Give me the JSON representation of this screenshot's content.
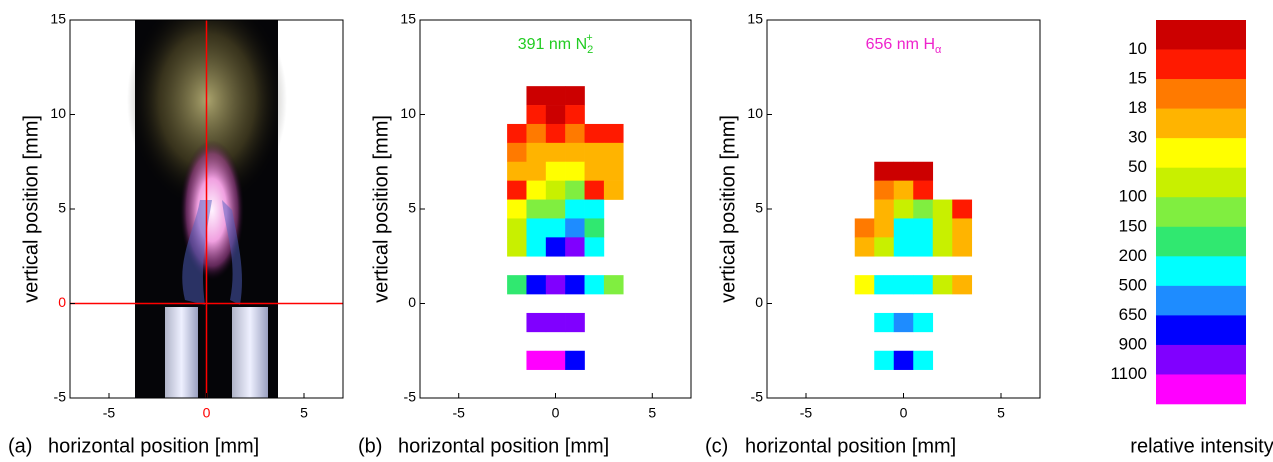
{
  "chart_data": [
    {
      "type": "image",
      "panel": "(a)",
      "xlabel": "horizontal position [mm]",
      "ylabel": "vertical position [mm]",
      "xlim": [
        -7,
        7
      ],
      "ylim": [
        -5,
        15
      ],
      "xticks": [
        -5,
        0,
        5
      ],
      "yticks": [
        -5,
        0,
        5,
        10,
        15
      ],
      "crosshair": {
        "x": 0,
        "y": 0,
        "color": "#ff0000"
      }
    },
    {
      "type": "heatmap",
      "panel": "(b)",
      "xlabel": "horizontal position [mm]",
      "ylabel": "vertical position [mm]",
      "title": {
        "text": "391 nm N",
        "sub": "2",
        "sup": "+",
        "color": "#22cc22"
      },
      "xlim": [
        -7,
        7
      ],
      "ylim": [
        -5,
        15
      ],
      "xticks": [
        -5,
        0,
        5
      ],
      "yticks": [
        -5,
        0,
        5,
        10,
        15
      ],
      "rows": [
        {
          "y": 11,
          "x": [
            -1,
            0,
            1
          ],
          "colors": [
            "#cc0000",
            "#cc0000",
            "#cc0000"
          ]
        },
        {
          "y": 10,
          "x": [
            -1,
            0,
            1
          ],
          "colors": [
            "#ff1a00",
            "#cc0000",
            "#ff1a00"
          ]
        },
        {
          "y": 9,
          "x": [
            -2,
            -1,
            0,
            1,
            2,
            3
          ],
          "colors": [
            "#ff1a00",
            "#ff7a00",
            "#ff1a00",
            "#ff7a00",
            "#ff1a00",
            "#ff1a00"
          ]
        },
        {
          "y": 8,
          "x": [
            -2,
            -1,
            0,
            1,
            2,
            3
          ],
          "colors": [
            "#ff7a00",
            "#ffb400",
            "#ffb400",
            "#ffb400",
            "#ffb400",
            "#ffb400"
          ]
        },
        {
          "y": 7,
          "x": [
            -2,
            -1,
            0,
            1,
            2,
            3
          ],
          "colors": [
            "#ffb400",
            "#ffb400",
            "#ffff00",
            "#ffff00",
            "#ffb400",
            "#ffb400"
          ]
        },
        {
          "y": 6,
          "x": [
            -2,
            -1,
            0,
            1,
            2,
            3
          ],
          "colors": [
            "#ff1a00",
            "#ffff00",
            "#c8f000",
            "#80ee40",
            "#ff1a00",
            "#ffb400"
          ]
        },
        {
          "y": 5,
          "x": [
            -2,
            -1,
            0,
            1,
            2
          ],
          "colors": [
            "#ffff00",
            "#80ee40",
            "#80ee40",
            "#00ffff",
            "#00ffff"
          ]
        },
        {
          "y": 4,
          "x": [
            -2,
            -1,
            0,
            1,
            2
          ],
          "colors": [
            "#c8f000",
            "#00ffff",
            "#00ffff",
            "#1e8cff",
            "#30e870"
          ]
        },
        {
          "y": 3,
          "x": [
            -2,
            -1,
            0,
            1,
            2
          ],
          "colors": [
            "#c8f000",
            "#00ffff",
            "#0000ff",
            "#8000ff",
            "#00ffff"
          ]
        },
        {
          "y": 1,
          "x": [
            -2,
            -1,
            0,
            1,
            2,
            3
          ],
          "colors": [
            "#30e870",
            "#0000ff",
            "#8000ff",
            "#0000ff",
            "#00ffff",
            "#80ee40"
          ]
        },
        {
          "y": -1,
          "x": [
            -1,
            0,
            1
          ],
          "colors": [
            "#8000ff",
            "#8000ff",
            "#8000ff"
          ]
        },
        {
          "y": -3,
          "x": [
            -1,
            0,
            1
          ],
          "colors": [
            "#ff00ff",
            "#ff00ff",
            "#0000ff"
          ]
        }
      ]
    },
    {
      "type": "heatmap",
      "panel": "(c)",
      "xlabel": "horizontal position [mm]",
      "ylabel": "vertical position [mm]",
      "title": {
        "text": "656 nm H",
        "sub": "α",
        "color": "#ee22cc"
      },
      "xlim": [
        -7,
        7
      ],
      "ylim": [
        -5,
        15
      ],
      "xticks": [
        -5,
        0,
        5
      ],
      "yticks": [
        -5,
        0,
        5,
        10,
        15
      ],
      "rows": [
        {
          "y": 7,
          "x": [
            -1,
            0,
            1
          ],
          "colors": [
            "#cc0000",
            "#cc0000",
            "#cc0000"
          ]
        },
        {
          "y": 6,
          "x": [
            -1,
            0,
            1
          ],
          "colors": [
            "#ff7a00",
            "#ffb400",
            "#ff1a00"
          ]
        },
        {
          "y": 5,
          "x": [
            -1,
            0,
            1,
            2,
            3
          ],
          "colors": [
            "#ffb400",
            "#c8f000",
            "#80ee40",
            "#c8f000",
            "#ff1a00"
          ]
        },
        {
          "y": 4,
          "x": [
            -2,
            -1,
            0,
            1,
            2,
            3
          ],
          "colors": [
            "#ff7a00",
            "#ffb400",
            "#00ffff",
            "#00ffff",
            "#c8f000",
            "#ffb400"
          ]
        },
        {
          "y": 3,
          "x": [
            -2,
            -1,
            0,
            1,
            2,
            3
          ],
          "colors": [
            "#ffb400",
            "#c8f000",
            "#00ffff",
            "#00ffff",
            "#c8f000",
            "#ffb400"
          ]
        },
        {
          "y": 1,
          "x": [
            -2,
            -1,
            0,
            1,
            2,
            3
          ],
          "colors": [
            "#ffff00",
            "#00ffff",
            "#00ffff",
            "#00ffff",
            "#c8f000",
            "#ffb400"
          ]
        },
        {
          "y": -1,
          "x": [
            -1,
            0,
            1
          ],
          "colors": [
            "#00ffff",
            "#1e8cff",
            "#00ffff"
          ]
        },
        {
          "y": -3,
          "x": [
            -1,
            0,
            1
          ],
          "colors": [
            "#00ffff",
            "#0000ff",
            "#00ffff"
          ]
        }
      ]
    },
    {
      "type": "colorbar",
      "label": "relative intensity",
      "colors": [
        "#cc0000",
        "#ff1a00",
        "#ff7a00",
        "#ffb400",
        "#ffff00",
        "#c8f000",
        "#80ee40",
        "#30e870",
        "#00ffff",
        "#1e8cff",
        "#0000ff",
        "#8000ff",
        "#ff00ff"
      ],
      "ticks": [
        10,
        15,
        18,
        30,
        50,
        100,
        150,
        200,
        500,
        650,
        900,
        1100
      ]
    }
  ]
}
